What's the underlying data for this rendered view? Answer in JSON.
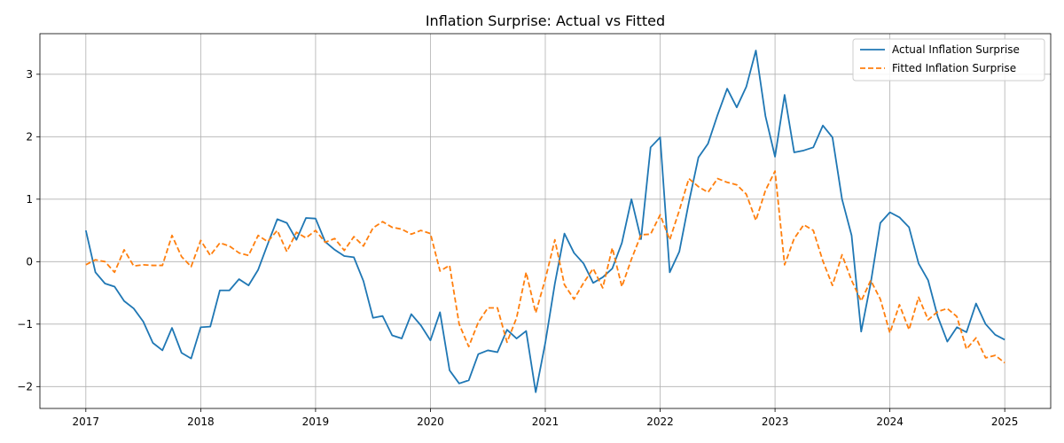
{
  "chart_data": {
    "type": "line",
    "title": "Inflation Surprise: Actual vs Fitted",
    "xlabel": "",
    "ylabel": "",
    "xlim": [
      2016.6,
      2025.4
    ],
    "ylim": [
      -2.35,
      3.65
    ],
    "x_ticks": [
      2017,
      2018,
      2019,
      2020,
      2021,
      2022,
      2023,
      2024,
      2025
    ],
    "x_tick_labels": [
      "2017",
      "2018",
      "2019",
      "2020",
      "2021",
      "2022",
      "2023",
      "2024",
      "2025"
    ],
    "y_ticks": [
      -2,
      -1,
      0,
      1,
      2,
      3
    ],
    "y_tick_labels": [
      "−2",
      "−1",
      "0",
      "1",
      "2",
      "3"
    ],
    "grid": true,
    "legend_position": "top-right",
    "x_start": "2017-01",
    "x_step": "1 month",
    "series": [
      {
        "name": "Actual Inflation Surprise",
        "color": "#1f77b4",
        "style": "solid",
        "values": [
          0.5,
          -0.17,
          -0.35,
          -0.4,
          -0.63,
          -0.75,
          -0.96,
          -1.3,
          -1.42,
          -1.06,
          -1.46,
          -1.55,
          -1.05,
          -1.04,
          -0.46,
          -0.46,
          -0.28,
          -0.38,
          -0.13,
          0.28,
          0.68,
          0.62,
          0.35,
          0.7,
          0.69,
          0.32,
          0.19,
          0.09,
          0.07,
          -0.31,
          -0.9,
          -0.87,
          -1.18,
          -1.23,
          -0.84,
          -1.02,
          -1.26,
          -0.81,
          -1.74,
          -1.95,
          -1.9,
          -1.48,
          -1.42,
          -1.45,
          -1.09,
          -1.23,
          -1.11,
          -2.09,
          -1.3,
          -0.35,
          0.45,
          0.14,
          -0.03,
          -0.34,
          -0.25,
          -0.11,
          0.3,
          1.0,
          0.36,
          1.83,
          1.99,
          -0.17,
          0.16,
          0.95,
          1.67,
          1.89,
          2.35,
          2.77,
          2.47,
          2.8,
          3.38,
          2.33,
          1.68,
          2.67,
          1.75,
          1.78,
          1.83,
          2.18,
          1.99,
          1.0,
          0.42,
          -1.12,
          -0.34,
          0.62,
          0.79,
          0.71,
          0.55,
          -0.03,
          -0.3,
          -0.88,
          -1.28,
          -1.05,
          -1.13,
          -0.67,
          -1.0,
          -1.17,
          -1.25
        ]
      },
      {
        "name": "Fitted Inflation Surprise",
        "color": "#ff7f0e",
        "style": "dashed",
        "values": [
          -0.05,
          0.03,
          0.0,
          -0.17,
          0.19,
          -0.07,
          -0.05,
          -0.06,
          -0.06,
          0.42,
          0.08,
          -0.08,
          0.34,
          0.1,
          0.3,
          0.25,
          0.14,
          0.1,
          0.42,
          0.32,
          0.5,
          0.16,
          0.47,
          0.38,
          0.5,
          0.31,
          0.37,
          0.18,
          0.4,
          0.25,
          0.54,
          0.64,
          0.55,
          0.52,
          0.44,
          0.5,
          0.45,
          -0.15,
          -0.06,
          -1.0,
          -1.36,
          -0.97,
          -0.74,
          -0.74,
          -1.29,
          -0.9,
          -0.17,
          -0.82,
          -0.28,
          0.35,
          -0.37,
          -0.6,
          -0.34,
          -0.11,
          -0.42,
          0.22,
          -0.4,
          0.04,
          0.43,
          0.44,
          0.75,
          0.35,
          0.82,
          1.33,
          1.2,
          1.11,
          1.33,
          1.27,
          1.23,
          1.08,
          0.66,
          1.14,
          1.45,
          -0.05,
          0.37,
          0.59,
          0.5,
          0.01,
          -0.38,
          0.11,
          -0.3,
          -0.63,
          -0.3,
          -0.6,
          -1.14,
          -0.69,
          -1.09,
          -0.57,
          -0.93,
          -0.8,
          -0.75,
          -0.88,
          -1.4,
          -1.22,
          -1.54,
          -1.5,
          -1.62
        ]
      }
    ]
  }
}
